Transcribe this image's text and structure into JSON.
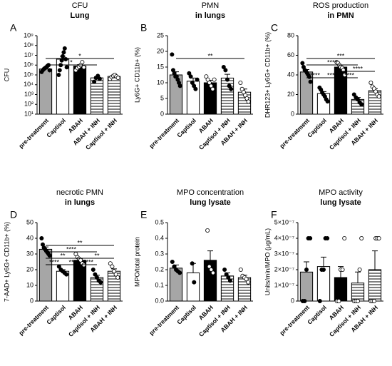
{
  "chart_data": [
    {
      "type": "bar",
      "panel": "A",
      "title": "CFU",
      "subtitle": "Lung",
      "ylabel": "CFU",
      "log": true,
      "categories": [
        "pre-treatment",
        "Captisol",
        "ABAH",
        "ABAH + INH",
        "Captisol + INH"
      ],
      "values": [
        400000,
        4000000,
        800000,
        50000,
        70000
      ],
      "errors": [
        150000,
        4000000,
        300000,
        15000,
        10000
      ],
      "colors": [
        "#a6a6a6",
        "#ffffff",
        "#000000",
        "#ffffff",
        "#ffffff"
      ],
      "hatch": [
        false,
        false,
        false,
        true,
        true
      ],
      "point_colors": [
        "#000000",
        "#000000",
        "#ffffff",
        "#000000",
        "#ffffff"
      ],
      "points": [
        [
          200000,
          300000,
          400000,
          500000,
          600000,
          800000,
          1000000,
          300000
        ],
        [
          100000,
          300000,
          1000000,
          3000000,
          8000000,
          20000000,
          50000000,
          4000000,
          600000
        ],
        [
          300000,
          500000,
          700000,
          1000000,
          2000000,
          600000
        ],
        [
          20000,
          50000,
          80000,
          40000
        ],
        [
          40000,
          60000,
          80000,
          100000,
          70000,
          50000
        ]
      ],
      "ylim": [
        10,
        1000000000
      ],
      "yticks": [
        {
          "value": 10,
          "label": "10¹"
        },
        {
          "value": 100,
          "label": "10²"
        },
        {
          "value": 1000,
          "label": "10³"
        },
        {
          "value": 10000,
          "label": "10⁴"
        },
        {
          "value": 100000,
          "label": "10⁵"
        },
        {
          "value": 1000000,
          "label": "10⁶"
        },
        {
          "value": 10000000,
          "label": "10⁷"
        },
        {
          "value": 100000000,
          "label": "10⁸"
        },
        {
          "value": 1000000000,
          "label": "10⁹"
        }
      ],
      "brackets": [
        {
          "from": "pre-treatment",
          "to": "ABAH + INH",
          "label": "*"
        },
        {
          "from": "pre-treatment",
          "to": "Captisol + INH",
          "label": "*"
        }
      ]
    },
    {
      "type": "bar",
      "panel": "B",
      "title": "PMN",
      "subtitle": "in lungs",
      "ylabel": "Ly6G+ CD11b+ (%)",
      "categories": [
        "pre-treatment",
        "Captisol",
        "ABAH",
        "Captisol + INH",
        "ABAH + INH"
      ],
      "values": [
        12.5,
        10.5,
        10,
        11.5,
        7
      ],
      "errors": [
        1,
        1,
        0.8,
        1.2,
        1
      ],
      "colors": [
        "#a6a6a6",
        "#ffffff",
        "#000000",
        "#ffffff",
        "#ffffff"
      ],
      "hatch": [
        false,
        false,
        false,
        true,
        true
      ],
      "point_colors": [
        "#000000",
        "#000000",
        "#ffffff",
        "#000000",
        "#ffffff"
      ],
      "points": [
        [
          19,
          14,
          13,
          12,
          12,
          11,
          10,
          9
        ],
        [
          13,
          12,
          10,
          9,
          8,
          11
        ],
        [
          12,
          11,
          10,
          9,
          8,
          11
        ],
        [
          15,
          14,
          11,
          9,
          8
        ],
        [
          10,
          8,
          7,
          6,
          5,
          4
        ]
      ],
      "ylim": [
        0,
        25
      ],
      "yticks": [
        0,
        5,
        10,
        15,
        20,
        25
      ],
      "brackets": [
        {
          "from": "pre-treatment",
          "to": "ABAH + INH",
          "label": "**"
        }
      ]
    },
    {
      "type": "bar",
      "panel": "C",
      "title": "ROS production",
      "subtitle": "in PMN",
      "ylabel": "DHR123+ Ly6G+ CD11b+ (%)",
      "categories": [
        "pre-treatment",
        "Captisol",
        "ABAH",
        "Captisol + INH",
        "ABAH + INH"
      ],
      "values": [
        43,
        21,
        48,
        15,
        24
      ],
      "errors": [
        2.5,
        2,
        2,
        2,
        2
      ],
      "colors": [
        "#a6a6a6",
        "#ffffff",
        "#000000",
        "#ffffff",
        "#ffffff"
      ],
      "hatch": [
        false,
        false,
        false,
        true,
        true
      ],
      "point_colors": [
        "#000000",
        "#000000",
        "#ffffff",
        "#000000",
        "#ffffff"
      ],
      "points": [
        [
          52,
          48,
          45,
          44,
          42,
          40,
          38,
          33
        ],
        [
          27,
          25,
          22,
          20,
          18,
          15,
          13
        ],
        [
          53,
          52,
          50,
          48,
          47,
          45,
          40
        ],
        [
          20,
          17,
          15,
          12,
          10
        ],
        [
          32,
          28,
          26,
          23,
          20,
          18
        ]
      ],
      "ylim": [
        0,
        80
      ],
      "yticks": [
        0,
        20,
        40,
        60,
        80
      ],
      "brackets": [
        {
          "from": "pre-treatment",
          "to": "Captisol",
          "label": "****"
        },
        {
          "from": "Captisol",
          "to": "ABAH",
          "label": "****"
        },
        {
          "from": "ABAH",
          "to": "Captisol + INH",
          "label": "****"
        },
        {
          "from": "ABAH",
          "to": "ABAH + INH",
          "label": "****"
        },
        {
          "from": "pre-treatment",
          "to": "Captisol + INH",
          "label": "****"
        },
        {
          "from": "pre-treatment",
          "to": "ABAH + INH",
          "label": "***"
        }
      ]
    },
    {
      "type": "bar",
      "panel": "D",
      "title": "necrotic PMN",
      "subtitle": "in lungs",
      "ylabel": "7-AAD+ Ly6G+ CD11b+ (%)",
      "categories": [
        "pre-treatment",
        "Captisol",
        "ABAH",
        "Captisol + INH",
        "ABAH + INH"
      ],
      "values": [
        33,
        19,
        26,
        15,
        19
      ],
      "errors": [
        1.5,
        1,
        1,
        1.5,
        1.5
      ],
      "colors": [
        "#a6a6a6",
        "#ffffff",
        "#000000",
        "#ffffff",
        "#ffffff"
      ],
      "hatch": [
        false,
        false,
        false,
        true,
        true
      ],
      "point_colors": [
        "#000000",
        "#000000",
        "#ffffff",
        "#000000",
        "#ffffff"
      ],
      "points": [
        [
          40,
          36,
          34,
          33,
          32,
          31,
          30,
          29
        ],
        [
          22,
          20,
          19,
          18,
          17
        ],
        [
          30,
          28,
          27,
          26,
          24,
          23
        ],
        [
          20,
          17,
          15,
          13,
          12
        ],
        [
          24,
          22,
          19,
          17,
          15
        ]
      ],
      "ylim": [
        0,
        50
      ],
      "yticks": [
        0,
        10,
        20,
        30,
        40,
        50
      ],
      "brackets": [
        {
          "from": "pre-treatment",
          "to": "Captisol",
          "label": "****"
        },
        {
          "from": "Captisol",
          "to": "ABAH",
          "label": "**"
        },
        {
          "from": "ABAH",
          "to": "Captisol + INH",
          "label": "****"
        },
        {
          "from": "ABAH",
          "to": "ABAH + INH",
          "label": "**"
        },
        {
          "from": "pre-treatment",
          "to": "ABAH",
          "label": "**"
        },
        {
          "from": "pre-treatment",
          "to": "Captisol + INH",
          "label": "****"
        },
        {
          "from": "pre-treatment",
          "to": "ABAH + INH",
          "label": "**"
        }
      ]
    },
    {
      "type": "bar",
      "panel": "E",
      "title": "MPO concentration",
      "subtitle": "lung lysate",
      "ylabel": "MPO/total protein",
      "categories": [
        "pre-treatment",
        "Captisol",
        "ABAH",
        "Captisol + INH",
        "ABAH + INH"
      ],
      "values": [
        0.21,
        0.18,
        0.26,
        0.16,
        0.15
      ],
      "errors": [
        0.02,
        0.06,
        0.06,
        0.02,
        0.015
      ],
      "colors": [
        "#a6a6a6",
        "#ffffff",
        "#000000",
        "#ffffff",
        "#ffffff"
      ],
      "hatch": [
        false,
        false,
        false,
        true,
        true
      ],
      "point_colors": [
        "#000000",
        "#000000",
        "#ffffff",
        "#000000",
        "#ffffff"
      ],
      "points": [
        [
          0.25,
          0.22,
          0.2,
          0.19,
          0.18
        ],
        [
          0.24,
          0.12
        ],
        [
          0.45,
          0.22,
          0.2,
          0.18
        ],
        [
          0.2,
          0.17,
          0.15,
          0.13
        ],
        [
          0.2,
          0.16,
          0.15,
          0.14,
          0.12
        ]
      ],
      "ylim": [
        0,
        0.5
      ],
      "yticks": [
        {
          "value": 0,
          "label": "0.0"
        },
        0.1,
        0.2,
        0.3,
        0.4,
        0.5
      ],
      "brackets": []
    },
    {
      "type": "bar",
      "panel": "F",
      "title": "MPO activity",
      "subtitle": "lung lysate",
      "ylabel": "Units/min/MPO (µg/mL)",
      "categories": [
        "pre-treatment",
        "Captisol",
        "ABAH",
        "Captisol + INH",
        "ABAH + INH"
      ],
      "values": [
        1.85e-07,
        2.2e-07,
        1.5e-07,
        1.15e-07,
        2e-07
      ],
      "errors": [
        6.5e-08,
        6e-08,
        7e-08,
        7e-08,
        1.2e-07
      ],
      "colors": [
        "#a6a6a6",
        "#ffffff",
        "#000000",
        "#ffffff",
        "#ffffff"
      ],
      "hatch": [
        false,
        false,
        false,
        true,
        true
      ],
      "point_colors": [
        "#000000",
        "#000000",
        "#ffffff",
        "#ffffff",
        "#ffffff"
      ],
      "points": [
        [
          0,
          0,
          2e-07,
          4e-07,
          4e-07
        ],
        [
          0,
          2e-07,
          2e-07,
          4e-07,
          4e-07
        ],
        [
          0,
          0,
          2e-07,
          2e-07,
          4e-07
        ],
        [
          0,
          0,
          0,
          2e-07,
          4e-07
        ],
        [
          0,
          0,
          0,
          4e-07,
          4e-07,
          4e-07
        ]
      ],
      "ylim": [
        0,
        5e-07
      ],
      "yticks": [
        0,
        {
          "value": 1e-07,
          "label": "1×10⁻⁷"
        },
        {
          "value": 2e-07,
          "label": "2×10⁻⁷"
        },
        {
          "value": 3e-07,
          "label": "3×10⁻⁷"
        },
        {
          "value": 4e-07,
          "label": "4×10⁻⁷"
        },
        {
          "value": 5e-07,
          "label": "5×10⁻⁷"
        }
      ],
      "brackets": []
    }
  ]
}
